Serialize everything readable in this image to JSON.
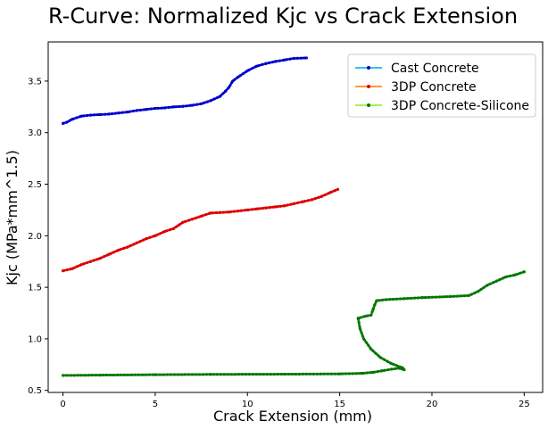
{
  "chart_data": {
    "type": "line",
    "title": "R-Curve: Normalized Kjc vs Crack Extension",
    "xlabel": "Crack Extension (mm)",
    "ylabel": "Kjc (MPa*mm^1.5)",
    "xlim": [
      -0.8,
      26.0
    ],
    "ylim": [
      0.48,
      3.88
    ],
    "xticks": [
      0,
      5,
      10,
      15,
      20,
      25
    ],
    "yticks": [
      0.5,
      1.0,
      1.5,
      2.0,
      2.5,
      3.0,
      3.5
    ],
    "grid": false,
    "legend_position": "top-right",
    "series": [
      {
        "name": "Cast Concrete",
        "line_color": "#1fb4e6",
        "marker_color": "#0000cc",
        "points": [
          [
            0,
            3.09
          ],
          [
            0.2,
            3.1
          ],
          [
            0.5,
            3.13
          ],
          [
            1,
            3.16
          ],
          [
            1.5,
            3.17
          ],
          [
            2,
            3.175
          ],
          [
            2.5,
            3.18
          ],
          [
            3,
            3.19
          ],
          [
            3.5,
            3.2
          ],
          [
            4,
            3.215
          ],
          [
            4.5,
            3.225
          ],
          [
            5,
            3.235
          ],
          [
            5.5,
            3.24
          ],
          [
            6,
            3.25
          ],
          [
            6.5,
            3.255
          ],
          [
            7,
            3.265
          ],
          [
            7.5,
            3.28
          ],
          [
            8,
            3.31
          ],
          [
            8.5,
            3.35
          ],
          [
            8.8,
            3.4
          ],
          [
            9,
            3.44
          ],
          [
            9.2,
            3.5
          ],
          [
            9.5,
            3.54
          ],
          [
            10,
            3.6
          ],
          [
            10.5,
            3.645
          ],
          [
            11,
            3.67
          ],
          [
            11.5,
            3.69
          ],
          [
            12,
            3.705
          ],
          [
            12.5,
            3.72
          ],
          [
            13.2,
            3.725
          ]
        ]
      },
      {
        "name": "3DP Concrete",
        "line_color": "#ff8c1a",
        "marker_color": "#dd0000",
        "points": [
          [
            0,
            1.66
          ],
          [
            0.5,
            1.68
          ],
          [
            1,
            1.72
          ],
          [
            1.5,
            1.75
          ],
          [
            2,
            1.78
          ],
          [
            2.5,
            1.82
          ],
          [
            3,
            1.86
          ],
          [
            3.5,
            1.89
          ],
          [
            4,
            1.93
          ],
          [
            4.5,
            1.97
          ],
          [
            5,
            2.0
          ],
          [
            5.5,
            2.04
          ],
          [
            6,
            2.07
          ],
          [
            6.5,
            2.13
          ],
          [
            7,
            2.16
          ],
          [
            7.5,
            2.19
          ],
          [
            8,
            2.22
          ],
          [
            8.5,
            2.225
          ],
          [
            9,
            2.23
          ],
          [
            9.5,
            2.24
          ],
          [
            10,
            2.25
          ],
          [
            10.5,
            2.26
          ],
          [
            11,
            2.27
          ],
          [
            11.5,
            2.28
          ],
          [
            12,
            2.29
          ],
          [
            12.5,
            2.31
          ],
          [
            13,
            2.33
          ],
          [
            13.5,
            2.35
          ],
          [
            14,
            2.38
          ],
          [
            14.5,
            2.42
          ],
          [
            14.9,
            2.45
          ]
        ]
      },
      {
        "name": "3DP Concrete-Silicone",
        "line_color": "#9aef3b",
        "marker_color": "#007700",
        "points": [
          [
            0,
            0.645
          ],
          [
            2,
            0.648
          ],
          [
            5,
            0.652
          ],
          [
            8,
            0.655
          ],
          [
            12,
            0.657
          ],
          [
            15,
            0.66
          ],
          [
            16.2,
            0.665
          ],
          [
            16.8,
            0.675
          ],
          [
            17.3,
            0.69
          ],
          [
            17.8,
            0.705
          ],
          [
            18.2,
            0.715
          ],
          [
            18.5,
            0.7
          ],
          [
            18.4,
            0.72
          ],
          [
            17.8,
            0.76
          ],
          [
            17.2,
            0.82
          ],
          [
            16.7,
            0.9
          ],
          [
            16.3,
            1.0
          ],
          [
            16.1,
            1.1
          ],
          [
            16.0,
            1.2
          ],
          [
            16.4,
            1.22
          ],
          [
            16.7,
            1.23
          ],
          [
            16.8,
            1.28
          ],
          [
            16.9,
            1.33
          ],
          [
            17.0,
            1.37
          ],
          [
            17.5,
            1.38
          ],
          [
            18.5,
            1.39
          ],
          [
            19.5,
            1.4
          ],
          [
            21,
            1.41
          ],
          [
            22,
            1.42
          ],
          [
            22.5,
            1.46
          ],
          [
            23,
            1.52
          ],
          [
            23.5,
            1.56
          ],
          [
            24,
            1.6
          ],
          [
            24.5,
            1.62
          ],
          [
            25,
            1.65
          ]
        ]
      }
    ]
  }
}
